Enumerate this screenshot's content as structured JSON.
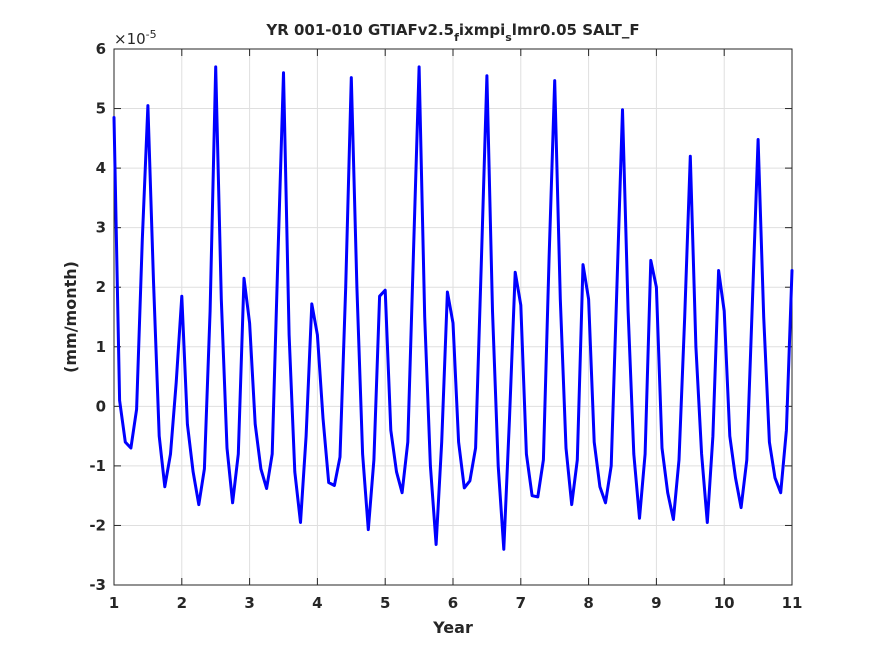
{
  "chart_data": {
    "type": "line",
    "title": {
      "text": "YR 001-010 GTIAFv2.5",
      "sub1": "f",
      "mid": "ixmpi",
      "sub2": "s",
      "tail": "lmr0.05 SALT_F"
    },
    "xlabel": "Year",
    "ylabel": "(mm/month)",
    "y_exponent_base": "×10",
    "y_exponent_power": "-5",
    "xlim": [
      1,
      11
    ],
    "ylim": [
      -3,
      6
    ],
    "xticks": [
      1,
      2,
      3,
      4,
      5,
      6,
      7,
      8,
      9,
      10,
      11
    ],
    "yticks": [
      -3,
      -2,
      -1,
      0,
      1,
      2,
      3,
      4,
      5,
      6
    ],
    "grid": true,
    "line_color": "#0000ff",
    "series": [
      {
        "x": [
          1.0,
          1.083,
          1.167,
          1.25,
          1.333,
          1.417,
          1.5,
          1.583,
          1.667,
          1.75,
          1.833,
          1.917,
          2.0,
          2.083,
          2.167,
          2.25,
          2.333,
          2.417,
          2.5,
          2.583,
          2.667,
          2.75,
          2.833,
          2.917,
          3.0,
          3.083,
          3.167,
          3.25,
          3.333,
          3.417,
          3.5,
          3.583,
          3.667,
          3.75,
          3.833,
          3.917,
          4.0,
          4.083,
          4.167,
          4.25,
          4.333,
          4.417,
          4.5,
          4.583,
          4.667,
          4.75,
          4.833,
          4.917,
          5.0,
          5.083,
          5.167,
          5.25,
          5.333,
          5.417,
          5.5,
          5.583,
          5.667,
          5.75,
          5.833,
          5.917,
          6.0,
          6.083,
          6.167,
          6.25,
          6.333,
          6.417,
          6.5,
          6.583,
          6.667,
          6.75,
          6.833,
          6.917,
          7.0,
          7.083,
          7.167,
          7.25,
          7.333,
          7.417,
          7.5,
          7.583,
          7.667,
          7.75,
          7.833,
          7.917,
          8.0,
          8.083,
          8.167,
          8.25,
          8.333,
          8.417,
          8.5,
          8.583,
          8.667,
          8.75,
          8.833,
          8.917,
          9.0,
          9.083,
          9.167,
          9.25,
          9.333,
          9.417,
          9.5,
          9.583,
          9.667,
          9.75,
          9.833,
          9.917,
          10.0,
          10.083,
          10.167,
          10.25,
          10.333,
          10.417,
          10.5,
          10.583,
          10.667,
          10.75,
          10.833,
          10.917,
          11.0
        ],
        "y": [
          4.85,
          0.1,
          -0.6,
          -0.7,
          -0.05,
          2.8,
          5.05,
          2.1,
          -0.5,
          -1.35,
          -0.8,
          0.4,
          1.85,
          -0.3,
          -1.1,
          -1.65,
          -1.05,
          1.6,
          5.7,
          1.8,
          -0.7,
          -1.62,
          -0.8,
          2.15,
          1.4,
          -0.3,
          -1.05,
          -1.38,
          -0.8,
          2.5,
          5.6,
          1.2,
          -1.1,
          -1.95,
          -0.5,
          1.72,
          1.2,
          -0.2,
          -1.28,
          -1.33,
          -0.85,
          2.0,
          5.52,
          2.0,
          -0.8,
          -2.07,
          -0.9,
          1.85,
          1.95,
          -0.4,
          -1.1,
          -1.45,
          -0.6,
          2.6,
          5.7,
          1.5,
          -1.0,
          -2.32,
          -0.6,
          1.92,
          1.4,
          -0.6,
          -1.37,
          -1.25,
          -0.7,
          2.4,
          5.55,
          1.6,
          -1.0,
          -2.4,
          -0.2,
          2.25,
          1.7,
          -0.8,
          -1.5,
          -1.52,
          -0.9,
          2.5,
          5.47,
          1.8,
          -0.7,
          -1.65,
          -0.9,
          2.38,
          1.8,
          -0.6,
          -1.35,
          -1.62,
          -1.0,
          2.0,
          4.98,
          1.6,
          -0.8,
          -1.88,
          -0.8,
          2.45,
          2.0,
          -0.7,
          -1.45,
          -1.9,
          -0.9,
          1.5,
          4.2,
          1.0,
          -0.8,
          -1.95,
          -0.5,
          2.28,
          1.6,
          -0.5,
          -1.2,
          -1.7,
          -0.9,
          1.8,
          4.48,
          1.5,
          -0.6,
          -1.2,
          -1.45,
          -0.4,
          2.28
        ]
      }
    ]
  }
}
